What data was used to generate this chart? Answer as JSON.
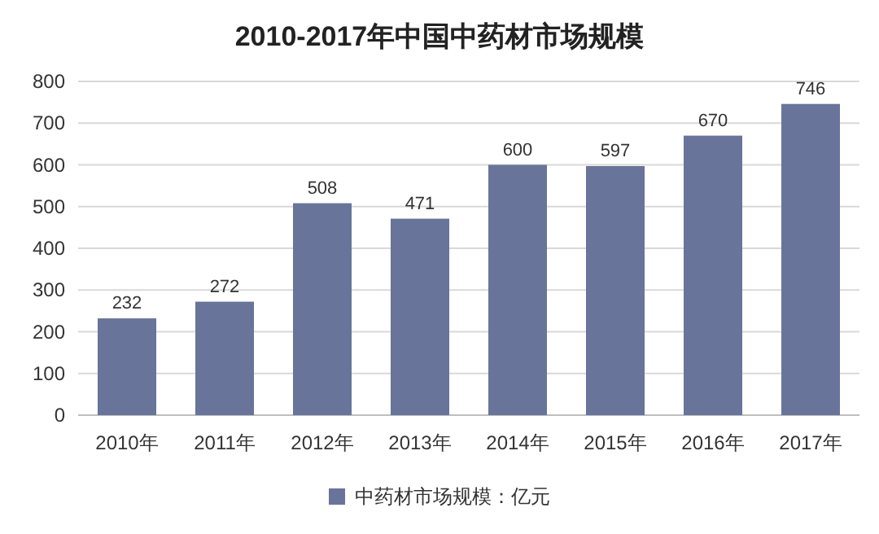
{
  "chart_data": {
    "type": "bar",
    "title": "2010-2017年中国中药材市场规模",
    "categories": [
      "2010年",
      "2011年",
      "2012年",
      "2013年",
      "2014年",
      "2015年",
      "2016年",
      "2017年"
    ],
    "series": [
      {
        "name": "中药材市场规模：亿元",
        "color": "#68749a",
        "values": [
          232,
          272,
          508,
          471,
          600,
          597,
          670,
          746
        ]
      }
    ],
    "ylim": [
      0,
      800
    ],
    "yticks": [
      0,
      100,
      200,
      300,
      400,
      500,
      600,
      700,
      800
    ],
    "grid": "y",
    "legend": "bottom",
    "data_labels": true
  }
}
